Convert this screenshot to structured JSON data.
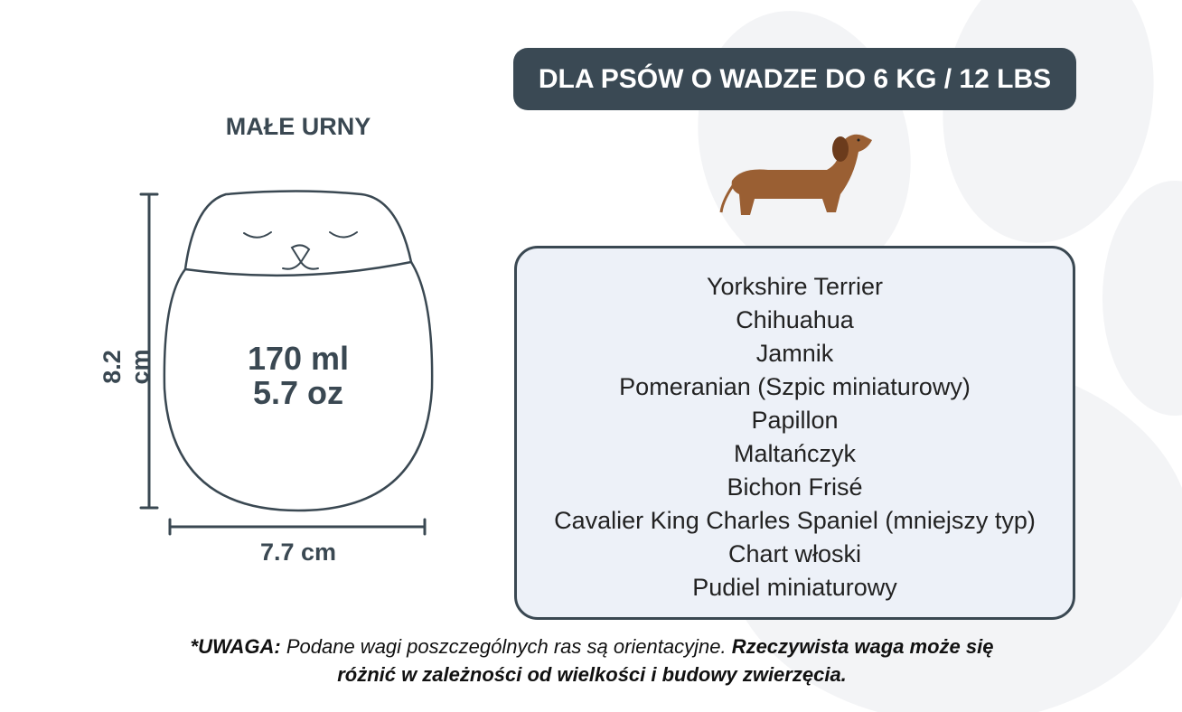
{
  "header": {
    "weight_label": "DLA PSÓW O WADZE DO 6 KG / 12 LBS"
  },
  "urn": {
    "title": "MAŁE URNY",
    "volume_ml": "170 ml",
    "volume_oz": "5.7 oz",
    "height": "8.2 cm",
    "width": "7.7 cm"
  },
  "breeds": [
    "Yorkshire Terrier",
    "Chihuahua",
    "Jamnik",
    "Pomeranian (Szpic miniaturowy)",
    "Papillon",
    "Maltańczyk",
    "Bichon Frisé",
    "Cavalier King Charles Spaniel (mniejszy typ)",
    "Chart włoski",
    "Pudiel miniaturowy"
  ],
  "note": {
    "prefix": "*UWAGA:",
    "text1": " Podane wagi poszczególnych ras są orientacyjne. ",
    "bold": "Rzeczywista waga może się różnić w zależności od wielkości i budowy zwierzęcia."
  },
  "colors": {
    "dark": "#3a4954",
    "box_fill": "#edf1f8",
    "dog": "#9a5f33"
  }
}
